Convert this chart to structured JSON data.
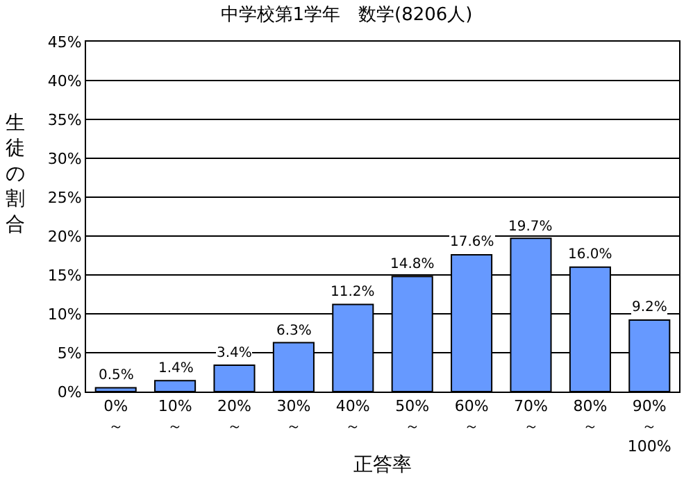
{
  "chart_data": {
    "type": "bar",
    "title": "中学校第1学年　数学(8206人)",
    "xlabel": "正答率",
    "ylabel": "生徒の割合",
    "categories": [
      "0%\n～",
      "10%\n～",
      "20%\n～",
      "30%\n～",
      "40%\n～",
      "50%\n～",
      "60%\n～",
      "70%\n～",
      "80%\n～",
      "90%\n～\n100%"
    ],
    "values": [
      0.5,
      1.4,
      3.4,
      6.3,
      11.2,
      14.8,
      17.6,
      19.7,
      16.0,
      9.2
    ],
    "value_labels": [
      "0.5%",
      "1.4%",
      "3.4%",
      "6.3%",
      "11.2%",
      "14.8%",
      "17.6%",
      "19.7%",
      "16.0%",
      "9.2%"
    ],
    "color": "#6699ff",
    "ylim": [
      0,
      45
    ],
    "yticks": [
      {
        "value": 0,
        "label": "0%"
      },
      {
        "value": 5,
        "label": "5%"
      },
      {
        "value": 10,
        "label": "10%"
      },
      {
        "value": 15,
        "label": "15%"
      },
      {
        "value": 20,
        "label": "20%"
      },
      {
        "value": 25,
        "label": "25%"
      },
      {
        "value": 30,
        "label": "30%"
      },
      {
        "value": 35,
        "label": "35%"
      },
      {
        "value": 40,
        "label": "40%"
      },
      {
        "value": 45,
        "label": "45%"
      }
    ],
    "grid": "y",
    "legend": false
  }
}
